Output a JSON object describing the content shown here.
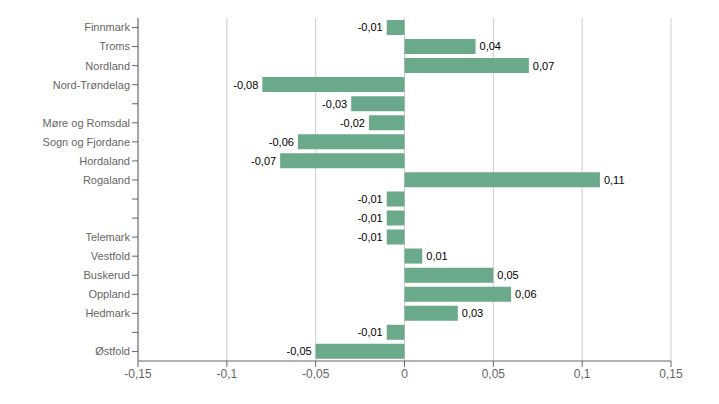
{
  "chart_data": {
    "type": "bar",
    "orientation": "horizontal",
    "categories": [
      "Finnmark",
      "Troms",
      "Nordland",
      "Nord-Trøndelag",
      null,
      "Møre og Romsdal",
      "Sogn og Fjordane",
      "Hordaland",
      "Rogaland",
      null,
      null,
      "Telemark",
      "Vestfold",
      "Buskerud",
      "Oppland",
      "Hedmark",
      null,
      "Østfold"
    ],
    "values": [
      -0.01,
      0.04,
      0.07,
      -0.08,
      -0.03,
      -0.02,
      -0.06,
      -0.07,
      0.11,
      -0.01,
      -0.01,
      -0.01,
      0.01,
      0.05,
      0.06,
      0.03,
      -0.01,
      -0.05
    ],
    "value_labels": [
      "-0,01",
      "0,04",
      "0,07",
      "-0,08",
      "-0,03",
      "-0,02",
      "-0,06",
      "-0,07",
      "0,11",
      "-0,01",
      "-0,01",
      "-0,01",
      "0,01",
      "0,05",
      "0,06",
      "0,03",
      "-0,01",
      "-0,05"
    ],
    "data_labels": true,
    "color": "#6aaa8a",
    "xlim": [
      -0.15,
      0.15
    ],
    "xticks": [
      {
        "value": -0.15,
        "label": "-0,15"
      },
      {
        "value": -0.1,
        "label": "-0,1"
      },
      {
        "value": -0.05,
        "label": "-0,05"
      },
      0,
      {
        "value": 0.05,
        "label": "0,05"
      },
      {
        "value": 0.1,
        "label": "0,1"
      },
      {
        "value": 0.15,
        "label": "0,15"
      }
    ],
    "grid": true
  }
}
